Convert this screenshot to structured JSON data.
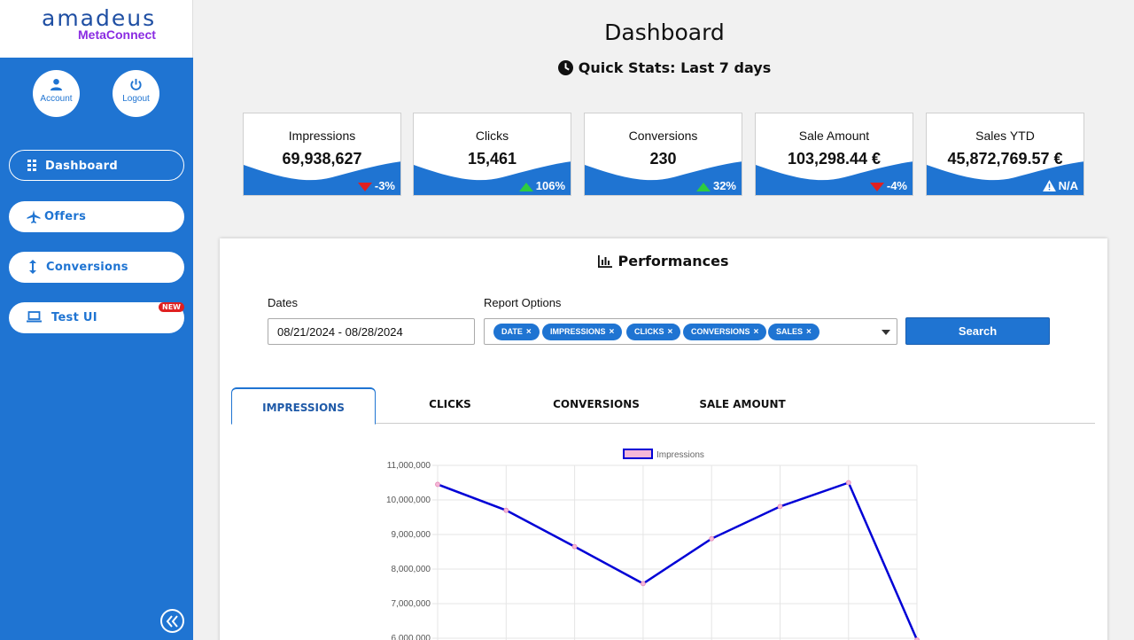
{
  "app": {
    "logo_text": "amadeus",
    "logo_sub": "MetaConnect"
  },
  "sidebar": {
    "account_label": "Account",
    "logout_label": "Logout",
    "items": [
      {
        "label": "Dashboard",
        "icon": "grid-icon",
        "active": true
      },
      {
        "label": "Offers",
        "icon": "plane-icon"
      },
      {
        "label": "Conversions",
        "icon": "vertical-arrows-icon"
      },
      {
        "label": "Test UI",
        "icon": "laptop-icon",
        "badge": "NEW"
      }
    ]
  },
  "header": {
    "title": "Dashboard",
    "quick_stats": "Quick Stats: Last 7 days"
  },
  "stats": [
    {
      "label": "Impressions",
      "value": "69,938,627",
      "change": "-3%",
      "trend": "down"
    },
    {
      "label": "Clicks",
      "value": "15,461",
      "change": "106%",
      "trend": "up"
    },
    {
      "label": "Conversions",
      "value": "230",
      "change": "32%",
      "trend": "up"
    },
    {
      "label": "Sale Amount",
      "value": "103,298.44 €",
      "change": "-4%",
      "trend": "down"
    },
    {
      "label": "Sales YTD",
      "value": "45,872,769.57 €",
      "change": "N/A",
      "trend": "warning"
    }
  ],
  "colors": {
    "primary": "#1f74d2",
    "trend_up": "#2ecc40",
    "trend_down": "#e02020",
    "series_line": "#0000d6",
    "series_point": "#f5b8d8"
  },
  "performance": {
    "title": "Performances",
    "dates_label": "Dates",
    "dates_value": "08/21/2024 - 08/28/2024",
    "report_label": "Report Options",
    "report_chips": [
      "DATE",
      "IMPRESSIONS",
      "CLICKS",
      "CONVERSIONS",
      "SALES"
    ],
    "chip_remove": "×",
    "search_label": "Search",
    "tabs": [
      "IMPRESSIONS",
      "CLICKS",
      "CONVERSIONS",
      "SALE AMOUNT"
    ]
  },
  "chart_data": {
    "type": "line",
    "legend": [
      "Impressions"
    ],
    "legend_position": "top",
    "grid": true,
    "yticks": [
      "11,000,000",
      "10,000,000",
      "9,000,000",
      "8,000,000",
      "7,000,000",
      "6,000,000"
    ],
    "ylim": [
      6000000,
      11000000
    ],
    "series": [
      {
        "name": "Impressions",
        "values": [
          10450000,
          9700000,
          8650000,
          7580000,
          8880000,
          9810000,
          10500000,
          5950000
        ]
      }
    ]
  }
}
